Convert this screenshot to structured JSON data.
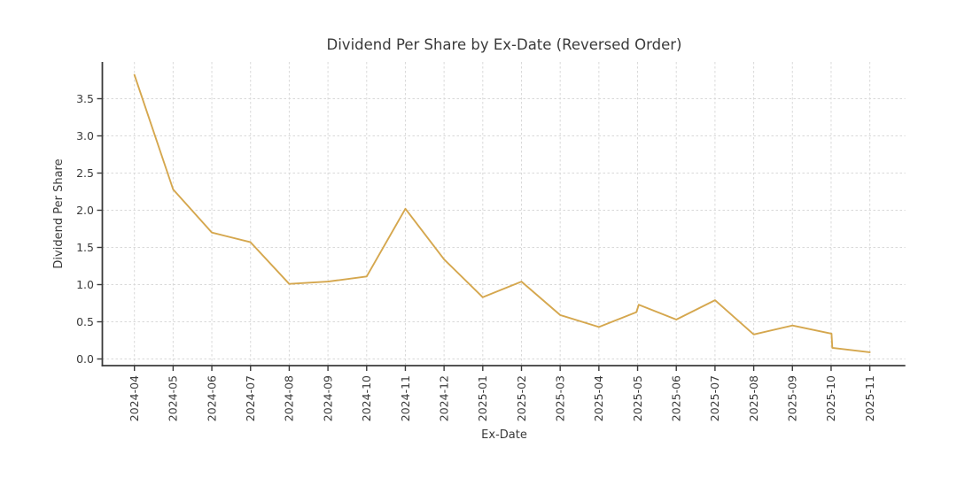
{
  "figure": {
    "background": "#ffffff"
  },
  "chart_data": {
    "type": "line",
    "title": "Dividend Per Share by Ex-Date (Reversed Order)",
    "xlabel": "Ex-Date",
    "ylabel": "Dividend Per Share",
    "legend": "none",
    "grid": "dashed light-gray, both axes",
    "line_color": "#d5a74e",
    "spine_color": "#3b3b3b",
    "grid_color": "#d9d9d9",
    "text_color": "#3a3a3a",
    "ylim": [
      -0.1,
      4.0
    ],
    "yticks": [
      0.0,
      0.5,
      1.0,
      1.5,
      2.0,
      2.5,
      3.0,
      3.5
    ],
    "x_tick_labels": [
      "2024-04",
      "2024-05",
      "2024-06",
      "2024-07",
      "2024-08",
      "2024-09",
      "2024-10",
      "2024-11",
      "2024-12",
      "2025-01",
      "2025-02",
      "2025-03",
      "2025-04",
      "2025-05",
      "2025-06",
      "2025-07",
      "2025-08",
      "2025-09",
      "2025-10",
      "2025-11"
    ],
    "series": [
      {
        "name": "Dividend Per Share",
        "points": [
          {
            "month": "2024-04",
            "x": 0,
            "y": 3.82
          },
          {
            "month": "2024-05",
            "x": 1,
            "y": 2.28
          },
          {
            "month": "2024-06",
            "x": 2,
            "y": 1.7
          },
          {
            "month": "2024-07",
            "x": 3,
            "y": 1.57
          },
          {
            "month": "2024-08",
            "x": 4,
            "y": 1.01
          },
          {
            "month": "2024-09",
            "x": 5,
            "y": 1.04
          },
          {
            "month": "2024-10",
            "x": 6,
            "y": 1.11
          },
          {
            "month": "2024-11",
            "x": 7,
            "y": 2.02
          },
          {
            "month": "2024-12",
            "x": 8,
            "y": 1.34
          },
          {
            "month": "2025-01",
            "x": 9,
            "y": 0.83
          },
          {
            "month": "2025-02",
            "x": 10,
            "y": 1.04
          },
          {
            "month": "2025-03",
            "x": 11,
            "y": 0.59
          },
          {
            "month": "2025-04",
            "x": 12,
            "y": 0.43
          },
          {
            "month": "2025-05",
            "x": 12.97,
            "y": 0.63
          },
          {
            "month": "2025-05",
            "x": 13.03,
            "y": 0.73
          },
          {
            "month": "2025-06",
            "x": 14,
            "y": 0.53
          },
          {
            "month": "2025-07",
            "x": 15,
            "y": 0.79
          },
          {
            "month": "2025-08",
            "x": 16,
            "y": 0.33
          },
          {
            "month": "2025-09",
            "x": 17,
            "y": 0.45
          },
          {
            "month": "2025-10",
            "x": 18.01,
            "y": 0.34
          },
          {
            "month": "2025-10",
            "x": 18.03,
            "y": 0.15
          },
          {
            "month": "2025-11",
            "x": 19,
            "y": 0.09
          }
        ]
      }
    ]
  }
}
